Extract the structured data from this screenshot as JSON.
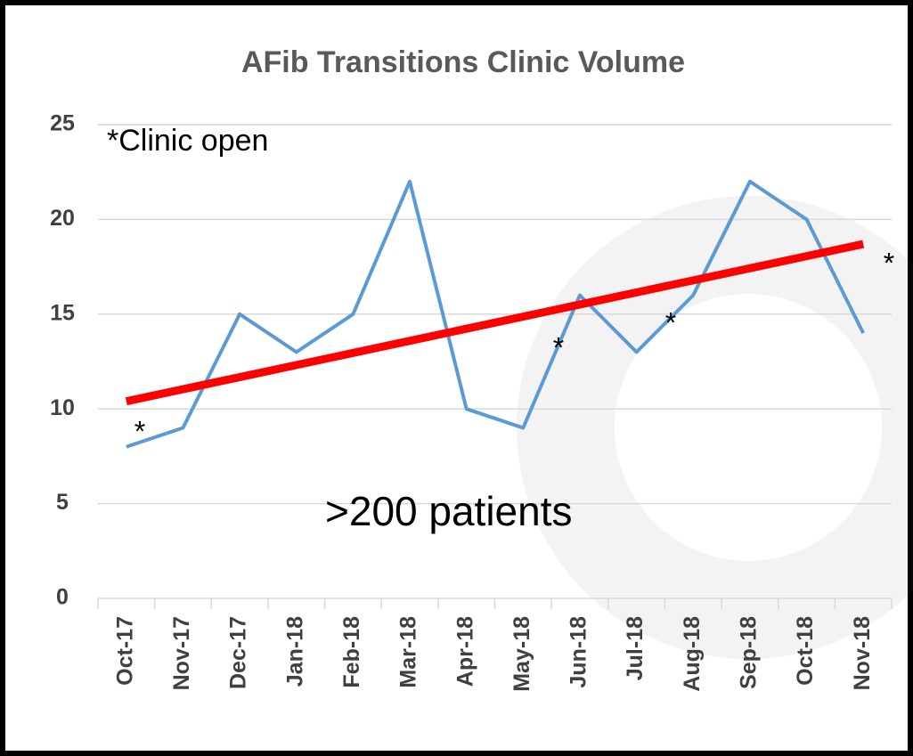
{
  "chart_data": {
    "type": "line",
    "title": "AFib Transitions Clinic Volume",
    "categories": [
      "Oct-17",
      "Nov-17",
      "Dec-17",
      "Jan-18",
      "Feb-18",
      "Mar-18",
      "Apr-18",
      "May-18",
      "Jun-18",
      "Jul-18",
      "Aug-18",
      "Sep-18",
      "Oct-18",
      "Nov-18"
    ],
    "series": [
      {
        "color": "#5b9bd5",
        "values": [
          8,
          9,
          15,
          13,
          15,
          22,
          10,
          9,
          16,
          13,
          16,
          22,
          20,
          14
        ]
      }
    ],
    "trendline": {
      "color": "#ff0000",
      "values": [
        10.4,
        18.7
      ]
    },
    "ylim": [
      0,
      25
    ],
    "yticks": [
      0,
      5,
      10,
      15,
      20,
      25
    ],
    "grid": true,
    "annotations": [
      "*Clinic open",
      ">200 patients",
      "*",
      "*",
      "*",
      "*"
    ]
  }
}
